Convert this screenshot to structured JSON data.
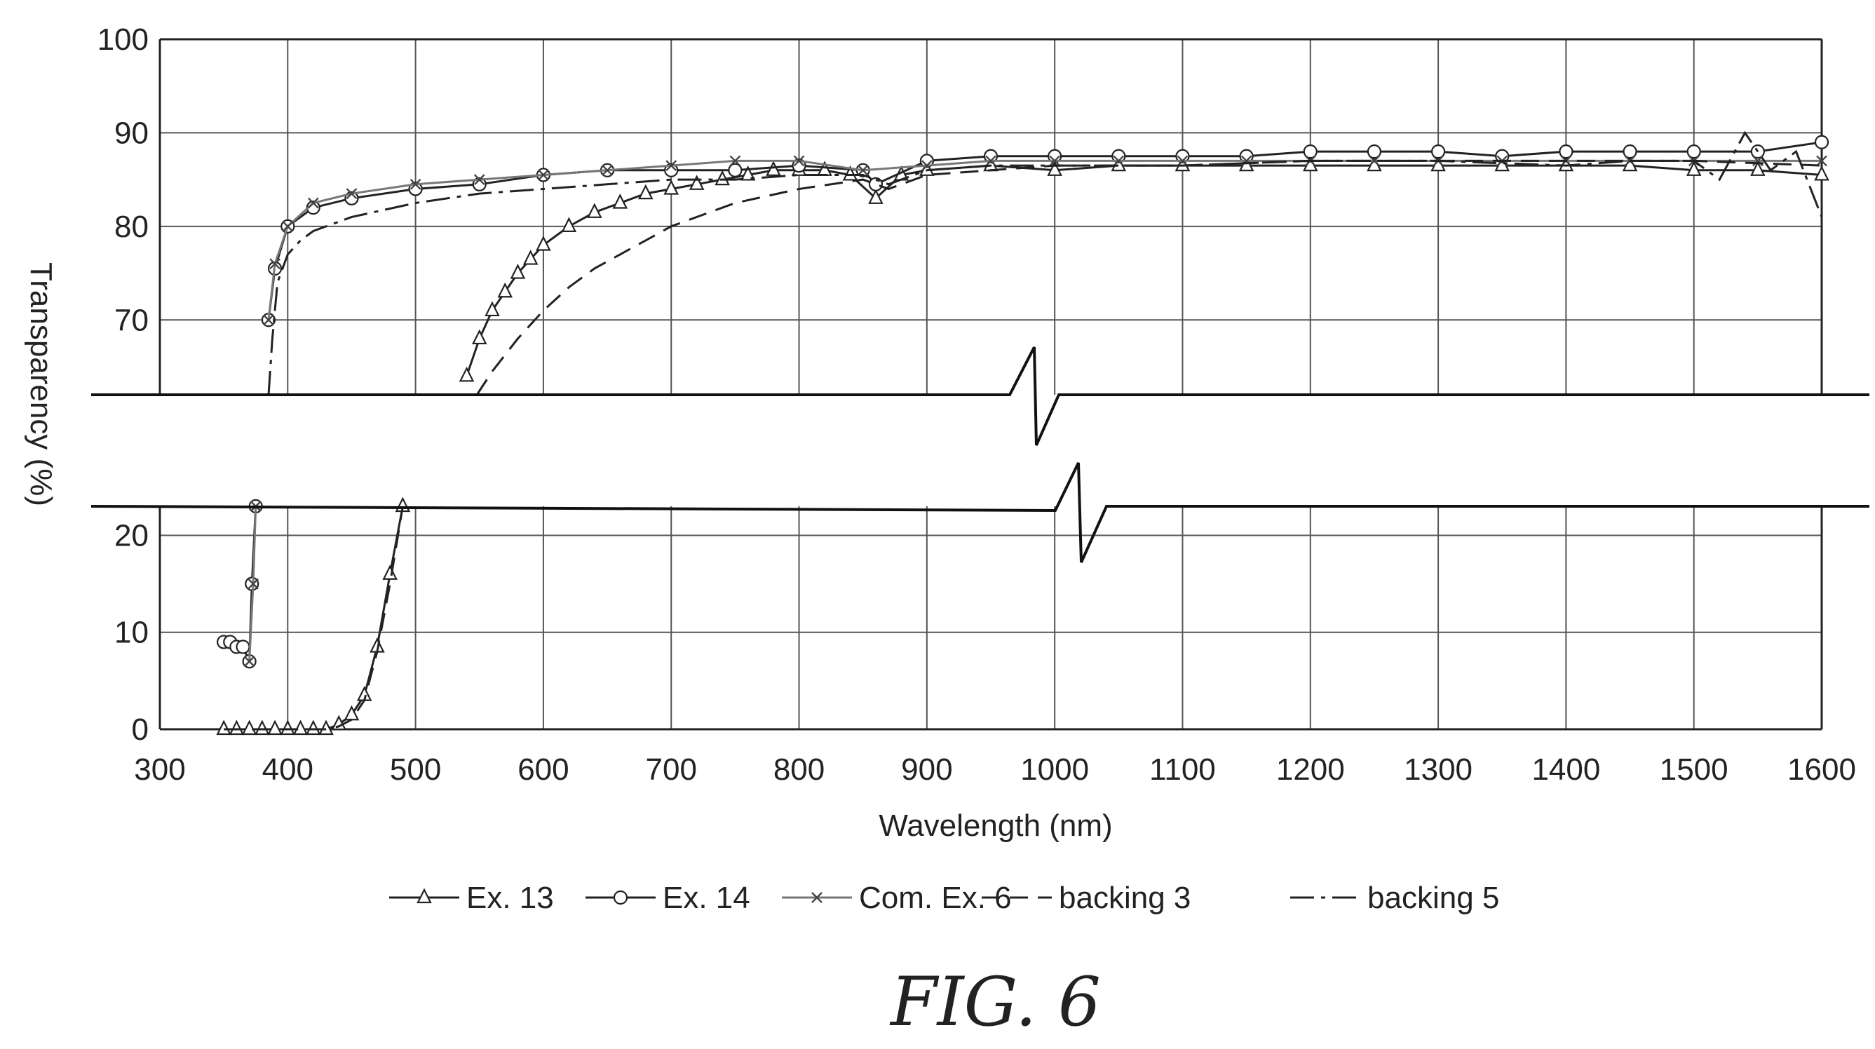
{
  "chart_data": {
    "type": "line",
    "title": "",
    "xlabel": "Wavelength (nm)",
    "ylabel": "Transparency (%)",
    "caption": "FIG. 6",
    "xlim": [
      300,
      1600
    ],
    "ylim_upper": [
      62,
      100
    ],
    "ylim_lower": [
      0,
      23
    ],
    "axis_break": "between 23 and 62",
    "grid": true,
    "legend_position": "bottom",
    "x_ticks": [
      "300",
      "400",
      "500",
      "600",
      "700",
      "800",
      "900",
      "1000",
      "1100",
      "1200",
      "1300",
      "1400",
      "1500",
      "1600"
    ],
    "y_ticks_upper": [
      "70",
      "80",
      "90",
      "100"
    ],
    "y_ticks_lower": [
      "0",
      "10",
      "20"
    ],
    "series": [
      {
        "name": "Ex. 13",
        "marker": "triangle",
        "dash": "solid",
        "x": [
          350,
          360,
          370,
          380,
          390,
          400,
          410,
          420,
          430,
          440,
          450,
          460,
          470,
          480,
          490,
          540,
          550,
          560,
          570,
          580,
          590,
          600,
          620,
          640,
          660,
          680,
          700,
          720,
          740,
          760,
          780,
          800,
          820,
          840,
          860,
          880,
          900,
          950,
          1000,
          1050,
          1100,
          1150,
          1200,
          1250,
          1300,
          1350,
          1400,
          1450,
          1500,
          1550,
          1600
        ],
        "y": [
          0,
          0,
          0,
          0,
          0,
          0,
          0,
          0,
          0,
          0.5,
          1.5,
          3.5,
          8.5,
          16,
          23,
          64,
          68,
          71,
          73,
          75,
          76.5,
          78,
          80,
          81.5,
          82.5,
          83.5,
          84,
          84.5,
          85,
          85.5,
          86,
          86,
          86,
          85.5,
          83,
          85.5,
          86,
          86.5,
          86,
          86.5,
          86.5,
          86.5,
          86.5,
          86.5,
          86.5,
          86.5,
          86.5,
          86.5,
          86,
          86,
          85.5
        ]
      },
      {
        "name": "Ex. 14",
        "marker": "circle",
        "dash": "solid",
        "x": [
          350,
          355,
          360,
          365,
          370,
          372,
          375,
          385,
          390,
          400,
          420,
          450,
          500,
          550,
          600,
          650,
          700,
          750,
          800,
          850,
          860,
          900,
          950,
          1000,
          1050,
          1100,
          1150,
          1200,
          1250,
          1300,
          1350,
          1400,
          1450,
          1500,
          1550,
          1600
        ],
        "y": [
          9,
          9,
          8.5,
          8.5,
          7,
          15,
          23,
          70,
          75.5,
          80,
          82,
          83,
          84,
          84.5,
          85.5,
          86,
          86,
          86,
          86.5,
          86,
          84.5,
          87,
          87.5,
          87.5,
          87.5,
          87.5,
          87.5,
          88,
          88,
          88,
          87.5,
          88,
          88,
          88,
          88,
          89
        ]
      },
      {
        "name": "Com. Ex. 6",
        "marker": "x",
        "dash": "solid",
        "x": [
          370,
          373,
          375,
          385,
          390,
          400,
          420,
          450,
          500,
          550,
          600,
          650,
          700,
          750,
          800,
          850,
          900,
          950,
          1000,
          1050,
          1100,
          1150,
          1200,
          1250,
          1300,
          1350,
          1400,
          1450,
          1500,
          1550,
          1600
        ],
        "y": [
          7,
          15,
          23,
          70,
          76,
          80,
          82.5,
          83.5,
          84.5,
          85,
          85.5,
          86,
          86.5,
          87,
          87,
          86,
          86.5,
          87,
          87,
          87,
          87,
          87,
          87,
          87,
          87,
          87,
          87,
          87,
          87,
          87,
          87
        ]
      },
      {
        "name": "backing 3",
        "marker": "",
        "dash": "dashed",
        "x": [
          350,
          420,
          430,
          440,
          450,
          460,
          470,
          480,
          490,
          548,
          560,
          580,
          600,
          620,
          640,
          660,
          680,
          700,
          750,
          800,
          850,
          870,
          900,
          950,
          1000,
          1100,
          1200,
          1300,
          1400,
          1500,
          1600
        ],
        "y": [
          0,
          0,
          0,
          0.3,
          1,
          3,
          8,
          15,
          23,
          62,
          64.5,
          68,
          71,
          73.5,
          75.5,
          77,
          78.5,
          80,
          82.5,
          84,
          85,
          84,
          85.5,
          86,
          86.5,
          86.5,
          87,
          87,
          87,
          87,
          86.5
        ]
      },
      {
        "name": "backing 5",
        "marker": "",
        "dash": "dashdot",
        "x": [
          385,
          388,
          392,
          400,
          410,
          420,
          450,
          500,
          550,
          600,
          650,
          700,
          750,
          800,
          850,
          870,
          900,
          950,
          1000,
          1100,
          1200,
          1300,
          1400,
          1450,
          1500,
          1520,
          1540,
          1560,
          1580,
          1600
        ],
        "y": [
          62,
          68,
          74,
          77,
          78.5,
          79.5,
          81,
          82.5,
          83.5,
          84,
          84.5,
          85,
          85,
          85.5,
          85.5,
          84.5,
          86,
          86.5,
          86.5,
          86.5,
          87,
          87,
          86.5,
          87,
          87,
          85,
          90,
          86,
          88,
          81
        ]
      }
    ]
  }
}
